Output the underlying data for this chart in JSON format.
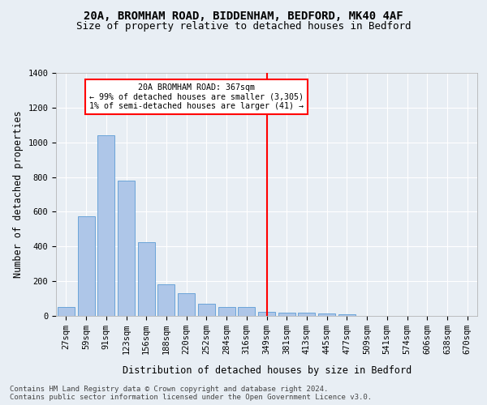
{
  "title_line1": "20A, BROMHAM ROAD, BIDDENHAM, BEDFORD, MK40 4AF",
  "title_line2": "Size of property relative to detached houses in Bedford",
  "xlabel": "Distribution of detached houses by size in Bedford",
  "ylabel": "Number of detached properties",
  "categories": [
    "27sqm",
    "59sqm",
    "91sqm",
    "123sqm",
    "156sqm",
    "188sqm",
    "220sqm",
    "252sqm",
    "284sqm",
    "316sqm",
    "349sqm",
    "381sqm",
    "413sqm",
    "445sqm",
    "477sqm",
    "509sqm",
    "541sqm",
    "574sqm",
    "606sqm",
    "638sqm",
    "670sqm"
  ],
  "values": [
    50,
    575,
    1040,
    780,
    425,
    180,
    130,
    70,
    50,
    50,
    25,
    20,
    20,
    15,
    10,
    0,
    0,
    0,
    0,
    0,
    0
  ],
  "bar_color": "#aec6e8",
  "bar_edge_color": "#5b9bd5",
  "background_color": "#e8eef4",
  "vline_x_idx": 10.0,
  "vline_color": "red",
  "annotation_text": "20A BROMHAM ROAD: 367sqm\n← 99% of detached houses are smaller (3,305)\n1% of semi-detached houses are larger (41) →",
  "annotation_box_color": "white",
  "annotation_box_edge_color": "red",
  "ylim": [
    0,
    1400
  ],
  "yticks": [
    0,
    200,
    400,
    600,
    800,
    1000,
    1200,
    1400
  ],
  "footer_text": "Contains HM Land Registry data © Crown copyright and database right 2024.\nContains public sector information licensed under the Open Government Licence v3.0.",
  "grid_color": "white",
  "title_fontsize": 10,
  "subtitle_fontsize": 9,
  "axis_label_fontsize": 8.5,
  "tick_fontsize": 7.5,
  "footer_fontsize": 6.5
}
